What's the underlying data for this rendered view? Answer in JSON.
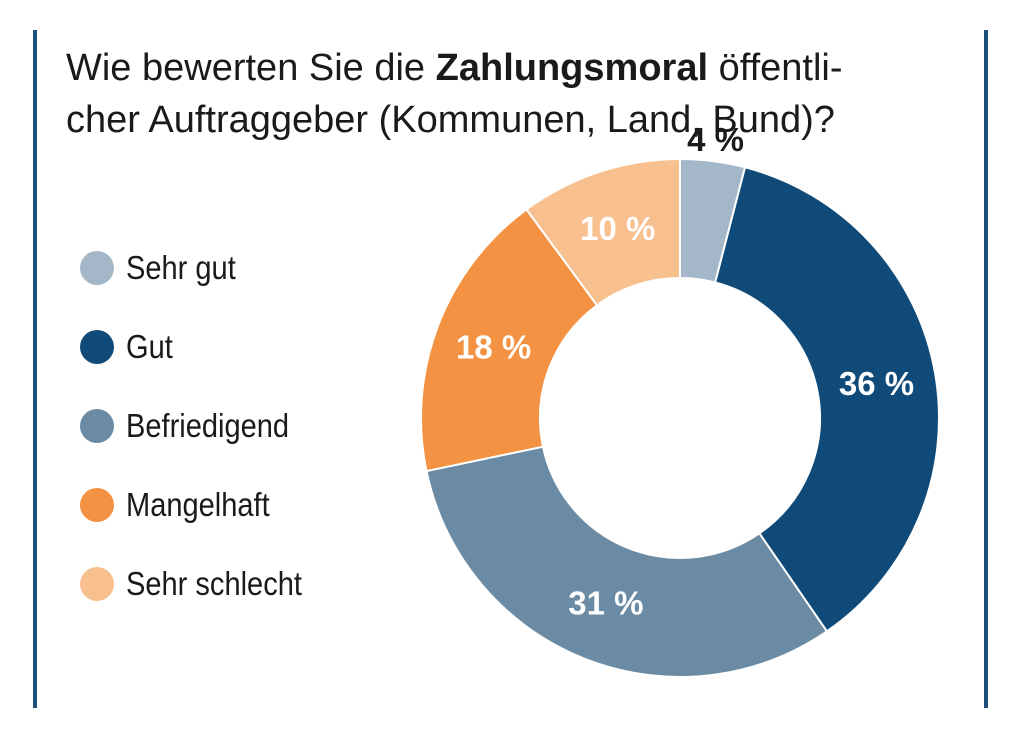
{
  "title": {
    "part1": "Wie bewerten Sie die ",
    "bold": "Zahlungsmoral",
    "part2": " öffentli­cher Auftraggeber (Kommunen, Land, Bund)?"
  },
  "chart_data": {
    "type": "pie",
    "donut": true,
    "legend_position": "left",
    "title": "Wie bewerten Sie die Zahlungsmoral öffentlicher Auftraggeber (Kommunen, Land, Bund)?",
    "series": [
      {
        "name": "Sehr gut",
        "value": 4,
        "label": "4 %",
        "color": "#a3b7c8",
        "label_color": "#1a1a1a"
      },
      {
        "name": "Gut",
        "value": 36,
        "label": "36 %",
        "color": "#0f4a78",
        "label_color": "#ffffff"
      },
      {
        "name": "Befriedigend",
        "value": 31,
        "label": "31 %",
        "color": "#6a8ba3",
        "label_color": "#ffffff"
      },
      {
        "name": "Mangelhaft",
        "value": 18,
        "label": "18 %",
        "color": "#f39243",
        "label_color": "#ffffff"
      },
      {
        "name": "Sehr schlecht",
        "value": 10,
        "label": "10 %",
        "color": "#f8c08f",
        "label_color": "#ffffff"
      }
    ]
  }
}
